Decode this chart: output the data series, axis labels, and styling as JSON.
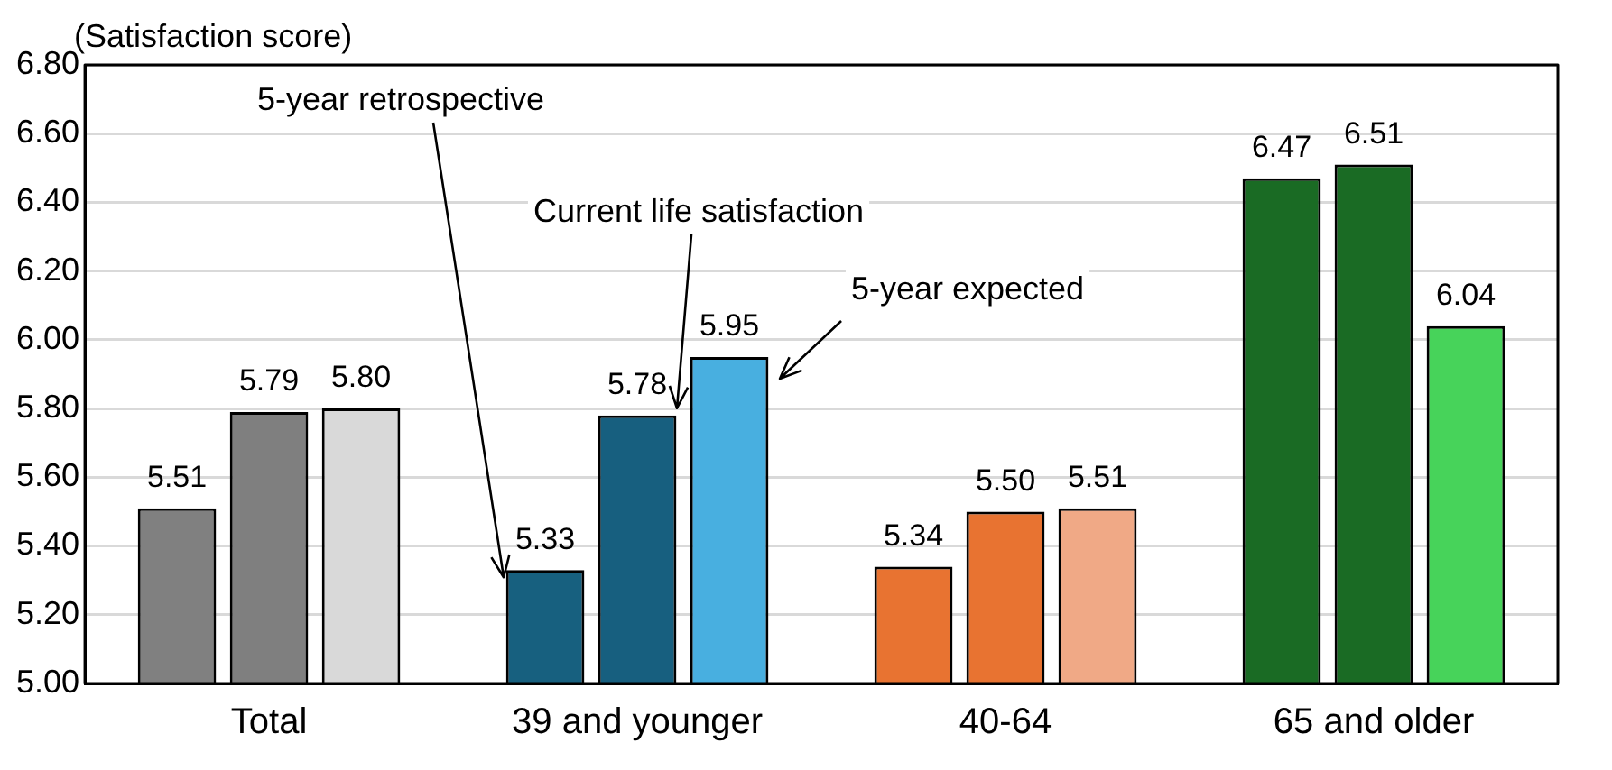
{
  "chart_data": {
    "type": "bar",
    "ylabel": "(Satisfaction score)",
    "categories": [
      "Total",
      "39 and younger",
      "40-64",
      "65 and older"
    ],
    "series": [
      {
        "name": "5-year retrospective",
        "colors": [
          "#808080",
          "#17607f",
          "#e87331",
          "#1a6b24"
        ],
        "values": [
          5.51,
          5.33,
          5.34,
          6.47
        ],
        "value_labels": [
          "5.51",
          "5.33",
          "5.34",
          "6.47"
        ]
      },
      {
        "name": "Current life satisfaction",
        "colors": [
          "#7f7f7f",
          "#175f7f",
          "#e87331",
          "#1a6b24"
        ],
        "values": [
          5.79,
          5.78,
          5.5,
          6.51
        ],
        "value_labels": [
          "5.79",
          "5.78",
          "5.50",
          "6.51"
        ]
      },
      {
        "name": "5-year expected",
        "colors": [
          "#d9d9d9",
          "#48afe0",
          "#f0a986",
          "#47d35a"
        ],
        "values": [
          5.8,
          5.95,
          5.51,
          6.04
        ],
        "value_labels": [
          "5.80",
          "5.95",
          "5.51",
          "6.04"
        ]
      }
    ],
    "ylim": [
      5,
      6.8
    ],
    "yticks": [
      {
        "value": 5,
        "label": "5.00"
      },
      {
        "value": 5.2,
        "label": "5.20"
      },
      {
        "value": 5.4,
        "label": "5.40"
      },
      {
        "value": 5.6,
        "label": "5.60"
      },
      {
        "value": 5.8,
        "label": "5.80"
      },
      {
        "value": 6,
        "label": "6.00"
      },
      {
        "value": 6.2,
        "label": "6.20"
      },
      {
        "value": 6.4,
        "label": "6.40"
      },
      {
        "value": 6.6,
        "label": "6.60"
      },
      {
        "value": 6.8,
        "label": "6.80"
      }
    ],
    "grid": "y",
    "legend": false
  }
}
